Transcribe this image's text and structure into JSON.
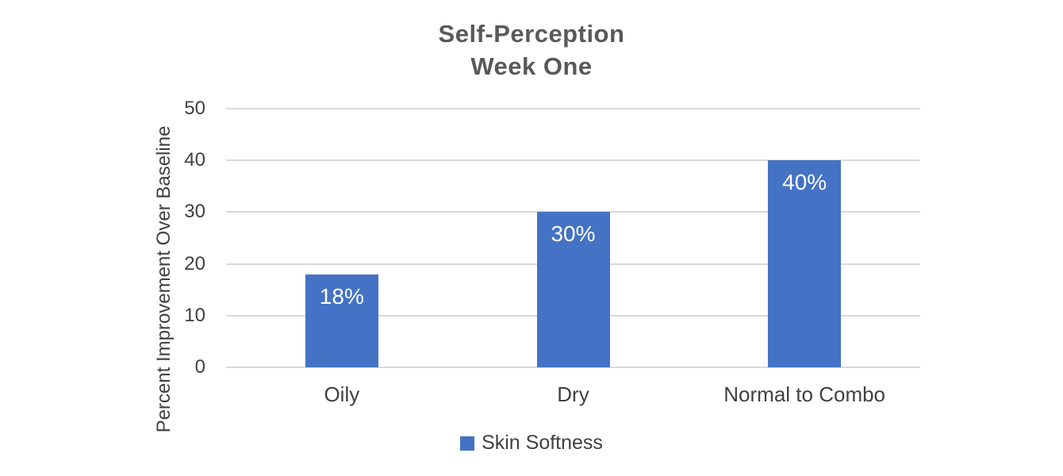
{
  "chart_data": {
    "type": "bar",
    "title_lines": [
      "Self-Perception",
      "Week One"
    ],
    "categories": [
      "Oily",
      "Dry",
      "Normal to Combo"
    ],
    "series": [
      {
        "name": "Skin Softness",
        "values": [
          18,
          30,
          40
        ]
      }
    ],
    "data_labels": [
      "18%",
      "30%",
      "40%"
    ],
    "xlabel": "",
    "ylabel": "Percent Improvement Over Baseline",
    "ylim": [
      0,
      50
    ],
    "yticks": [
      0,
      10,
      20,
      30,
      40,
      50
    ],
    "grid": true,
    "legend_position": "bottom",
    "colors": {
      "bar": "#4472C4",
      "gridline": "#D9D9D9",
      "title": "#595959",
      "axis_text": "#404040",
      "data_label": "#FFFFFF",
      "background": "#FFFFFF"
    }
  }
}
